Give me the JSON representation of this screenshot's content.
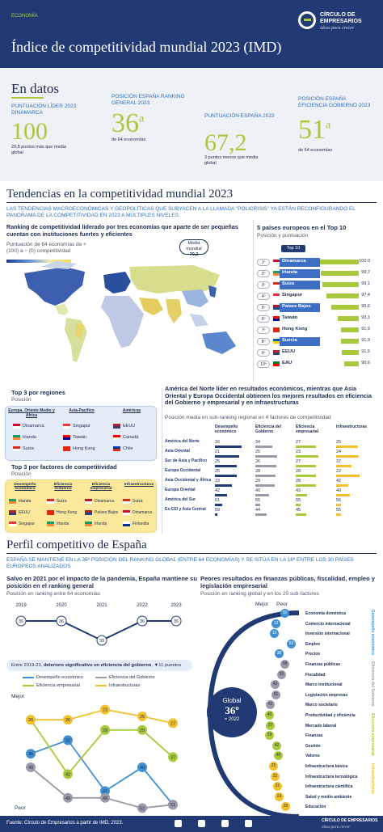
{
  "header": {
    "section": "ECONOMÍA",
    "title": "Índice de competitividad mundial 2023 (IMD)",
    "brand_top": "CÍRCULO DE EMPRESARIOS",
    "brand_sub": "ideas para crecer"
  },
  "en_datos": {
    "title": "En datos",
    "k1": {
      "label": "PUNTUACIÓN LÍDER 2023 DINAMARCA",
      "value": "100",
      "note": "29,8 puntos más que media global"
    },
    "k2": {
      "label": "POSICIÓN ESPAÑA RANKING GENERAL 2023",
      "value": "36",
      "sup": "a",
      "note": "de 64 economías"
    },
    "k3": {
      "label": "PUNTUACIÓN ESPAÑA 2023",
      "value": "67,2",
      "note": "3 puntos menos que media global"
    },
    "k4": {
      "label": "POSICIÓN ESPAÑA EFICIENCIA GOBIERNO 2023",
      "value": "51",
      "sup": "a",
      "note": "de 64 economías"
    }
  },
  "tendencias": {
    "title": "Tendencias en la competitividad mundial 2023",
    "subtitle": "LAS TENDENCIAS MACROECONÓMICAS Y GEOPOLÍTICAS QUE SUBYACEN A LA LLAMADA \"POLICRISIS\" YA ESTÁN RECONFIGURANDO EL PANORAMA DE LA COMPETITIVIDAD EN 2023 A MÚLTIPLES NIVELES",
    "map_title": "Ranking de competitividad liderado por tres economías que aparte de ser pequeñas cuentan con instituciones fuertes y eficientes",
    "map_legend": "Puntuación de 64 economías de + (100) a − (0) competitividad",
    "media_label": "Media mundial",
    "media_value": "70,2",
    "top5_title": "5 países europeos en el Top 10",
    "top5_sub": "Posición y puntuación",
    "top10_label": "Top 10"
  },
  "top10": [
    {
      "pos": "1º",
      "name": "Dinamarca",
      "score": "100,0",
      "v": 100.0,
      "c1": "#c8102e",
      "c2": "#ffffff",
      "hl": true
    },
    {
      "pos": "2º",
      "name": "Irlanda",
      "score": "99,7",
      "v": 99.7,
      "c1": "#169b62",
      "c2": "#ff883e",
      "hl": true
    },
    {
      "pos": "3º",
      "name": "Suiza",
      "score": "99,1",
      "v": 99.1,
      "c1": "#d52b1e",
      "c2": "#ffffff",
      "hl": true
    },
    {
      "pos": "4º",
      "name": "Singapur",
      "score": "97,4",
      "v": 97.4,
      "c1": "#ef3340",
      "c2": "#ffffff",
      "hl": false
    },
    {
      "pos": "5º",
      "name": "Países Bajos",
      "score": "95,6",
      "v": 95.6,
      "c1": "#ae1c28",
      "c2": "#21468b",
      "hl": true
    },
    {
      "pos": "6º",
      "name": "Taiwán",
      "score": "93,1",
      "v": 93.1,
      "c1": "#fe0000",
      "c2": "#000095",
      "hl": false
    },
    {
      "pos": "7º",
      "name": "Hong Kong",
      "score": "91,9",
      "v": 91.9,
      "c1": "#de2910",
      "c2": "#de2910",
      "hl": false
    },
    {
      "pos": "8º",
      "name": "Suecia",
      "score": "91,9",
      "v": 91.9,
      "c1": "#006aa7",
      "c2": "#fecc00",
      "hl": true
    },
    {
      "pos": "9º",
      "name": "EEUU",
      "score": "91,5",
      "v": 91.5,
      "c1": "#b22234",
      "c2": "#3c3b6e",
      "hl": false
    },
    {
      "pos": "10º",
      "name": "EAU",
      "score": "90,6",
      "v": 90.6,
      "c1": "#00732f",
      "c2": "#ff0000",
      "hl": false
    }
  ],
  "top3_regiones": {
    "title": "Top 3 por regiones",
    "sub": "Posición",
    "cols": [
      {
        "head": "Europa, Oriente Medio y África",
        "items": [
          "Dinamarca",
          "Irlanda",
          "Suiza"
        ]
      },
      {
        "head": "Asia-Pacífico",
        "items": [
          "Singapur",
          "Taiwán",
          "Hong Kong"
        ]
      },
      {
        "head": "Américas",
        "items": [
          "EEUU",
          "Canadá",
          "Chile"
        ]
      }
    ]
  },
  "top3_factores": {
    "title": "Top 3 por factores de competitividad",
    "sub": "Posición",
    "cols": [
      {
        "head": "Desempeño económico",
        "items": [
          "Irlanda",
          "EEUU",
          "Singapur"
        ]
      },
      {
        "head": "Eficiencia Gobierno",
        "items": [
          "Suiza",
          "Hong Kong",
          "Irlanda"
        ]
      },
      {
        "head": "Eficiencia empresarial",
        "items": [
          "Dinamarca",
          "Países Bajos",
          "Irlanda"
        ]
      },
      {
        "head": "Infraestructuras",
        "items": [
          "Suiza",
          "Dinamarca",
          "Finlandia"
        ]
      }
    ]
  },
  "regional": {
    "title": "América del Norte líder en resultados económicos, mientras que Asia Oriental y Europa Occidental obtienen los mejores resultados en eficiencia del Gobierno y empresarial y en infraestructuras",
    "sub": "Posición media en sub-ranking regional en 4 factores de competitividad",
    "headers": [
      "Desempeño económico",
      "Eficiencia del Gobierno",
      "Eficiencia empresarial",
      "Infraestructuras"
    ],
    "rows": [
      {
        "name": "América del Norte",
        "v": [
          "16",
          "34",
          "27",
          "25"
        ]
      },
      {
        "name": "Asia Oriental",
        "v": [
          "21",
          "25",
          "23",
          "24"
        ]
      },
      {
        "name": "Sur de Asia y Pacífico",
        "v": [
          "25",
          "26",
          "27",
          "37"
        ]
      },
      {
        "name": "Europa Occidental",
        "v": [
          "25",
          "28",
          "28",
          "22"
        ]
      },
      {
        "name": "Asia Occidental y África",
        "v": [
          "33",
          "29",
          "28",
          "42"
        ]
      },
      {
        "name": "Europa Oriental",
        "v": [
          "42",
          "40",
          "43",
          "40"
        ]
      },
      {
        "name": "América del Sur",
        "v": [
          "51",
          "55",
          "55",
          "56"
        ]
      },
      {
        "name": "Ex-CEI y Asia Central",
        "v": [
          "59",
          "44",
          "45",
          "55"
        ]
      }
    ]
  },
  "perfil": {
    "title": "Perfil competitivo de España",
    "subtitle": "ESPAÑA SE MANTIENE EN LA 36ª POSICIÓN DEL RANKING GLOBAL (ENTRE 64 ECONOMÍAS) Y SE SITÚA EN LA 18ª ENTRE LOS 30 PAÍSES EUROPEOS ANALIZADOS",
    "left_title": "Salvo en 2021 por el impacto de la pandemia, España mantiene su posición en el ranking general",
    "left_sub": "Posición en ranking entre 64 economías",
    "years": [
      "2019",
      "2020",
      "2021",
      "2022",
      "2023"
    ],
    "overall": [
      "36",
      "36",
      "39",
      "36",
      "36"
    ],
    "note_pre": "Entre 2019-23, ",
    "note_bold": "deterioro significativo en eficiencia del gobierno",
    "note_post": ", ▼11 puestos",
    "legend": [
      "Desempeño económico",
      "Eficiencia del Gobierno",
      "Eficiencia empresarial",
      "Infraestructuras"
    ],
    "mejor": "Mejor",
    "peor": "Peor",
    "right_title": "Peores resultados en finanzas públicas, fiscalidad, empleo y legislación empresarial",
    "right_sub": "Posición en ranking global y en los 20 sub-factores",
    "global_label": "Global",
    "global_value": "36º",
    "global_note": "= 2022",
    "cats": [
      "Desempeño económico",
      "Eficiencia del Gobierno",
      "Eficiencia empresarial",
      "Infraestructuras"
    ]
  },
  "chart_data": {
    "type": "line",
    "x": [
      "2019",
      "2020",
      "2021",
      "2022",
      "2023"
    ],
    "ylim": [
      64,
      1
    ],
    "series": [
      {
        "name": "Desempeño económico",
        "values": [
          36,
          32,
          47,
          40,
          51
        ]
      },
      {
        "name": "Eficiencia del Gobierno",
        "values": [
          40,
          49,
          49,
          52,
          51
        ]
      },
      {
        "name": "Eficiencia empresarial",
        "values": [
          26,
          42,
          29,
          29,
          37
        ]
      },
      {
        "name": "Infraestructuras",
        "values": [
          26,
          26,
          23,
          25,
          27
        ]
      }
    ],
    "overall": [
      36,
      36,
      39,
      36,
      36
    ]
  },
  "subfactors": [
    {
      "name": "Economía doméstica",
      "v": "31",
      "pos": 31,
      "c": "#3f8fd3"
    },
    {
      "name": "Comercio internacional",
      "v": "13",
      "pos": 13,
      "c": "#3f8fd3"
    },
    {
      "name": "Inversión internacional",
      "v": "13",
      "pos": 13,
      "c": "#3f8fd3"
    },
    {
      "name": "Empleo",
      "v": "63",
      "pos": 63,
      "c": "#3f8fd3"
    },
    {
      "name": "Precios",
      "v": "38",
      "pos": 38,
      "c": "#3f8fd3"
    },
    {
      "name": "Finanzas públicas",
      "v": "58",
      "pos": 58,
      "c": "#9a9aa8"
    },
    {
      "name": "Fiscalidad",
      "v": "55",
      "pos": 55,
      "c": "#9a9aa8"
    },
    {
      "name": "Marco institucional",
      "v": "43",
      "pos": 43,
      "c": "#9a9aa8"
    },
    {
      "name": "Legislación empresas",
      "v": "51",
      "pos": 51,
      "c": "#9a9aa8"
    },
    {
      "name": "Marco societario",
      "v": "42",
      "pos": 42,
      "c": "#9a9aa8"
    },
    {
      "name": "Productividad y eficiencia",
      "v": "40",
      "pos": 40,
      "c": "#a7c93b"
    },
    {
      "name": "Mercado laboral",
      "v": "37",
      "pos": 37,
      "c": "#a7c93b"
    },
    {
      "name": "Finanzas",
      "v": "29",
      "pos": 29,
      "c": "#a7c93b"
    },
    {
      "name": "Gestión",
      "v": "42",
      "pos": 42,
      "c": "#a7c93b"
    },
    {
      "name": "Valores",
      "v": "40",
      "pos": 40,
      "c": "#a7c93b"
    },
    {
      "name": "Infraestructura básica",
      "v": "25",
      "pos": 25,
      "c": "#f2c12e"
    },
    {
      "name": "Infraestructura tecnológica",
      "v": "22",
      "pos": 22,
      "c": "#f2c12e"
    },
    {
      "name": "Infraestructura científica",
      "v": "21",
      "pos": 21,
      "c": "#f2c12e"
    },
    {
      "name": "Salud y medio ambiente",
      "v": "23",
      "pos": 23,
      "c": "#f2c12e"
    },
    {
      "name": "Educación",
      "v": "33",
      "pos": 33,
      "c": "#f2c12e"
    }
  ],
  "footer": {
    "source": "Fuente: Círculo de Empresarios a partir de IMD, 2023.",
    "brand": "CÍRCULO DE EMPRESARIOS",
    "brand_sub": "ideas para crecer"
  }
}
